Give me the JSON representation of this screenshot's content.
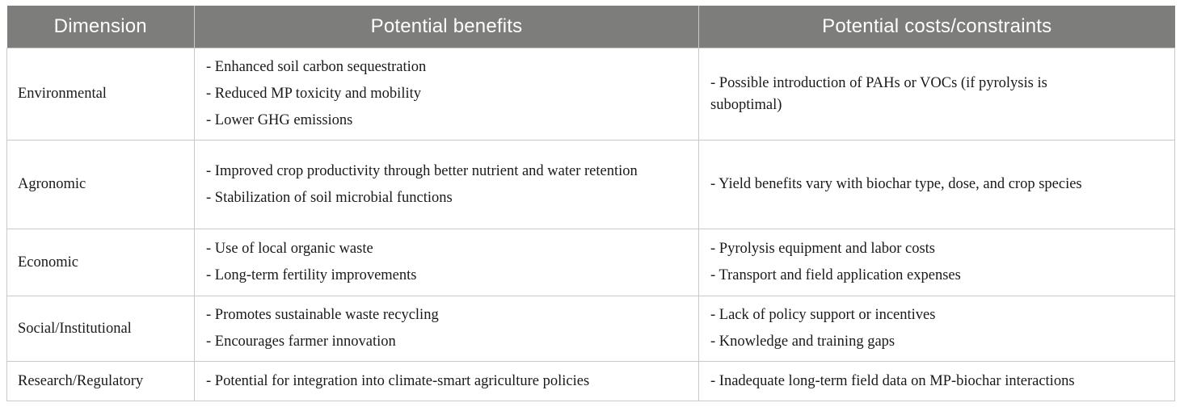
{
  "header": {
    "dimension": "Dimension",
    "benefits": "Potential benefits",
    "costs": "Potential costs/constraints"
  },
  "rows": [
    {
      "dimension": "Environmental",
      "benefits": [
        "- Enhanced soil carbon sequestration",
        "- Reduced MP toxicity and mobility",
        "- Lower GHG emissions"
      ],
      "costs": [
        "- Possible introduction of PAHs or VOCs (if pyrolysis is suboptimal)"
      ]
    },
    {
      "dimension": "Agronomic",
      "benefits": [
        "- Improved crop productivity through better nutrient and water retention",
        "- Stabilization of soil microbial functions"
      ],
      "costs": [
        "- Yield benefits vary with biochar type, dose, and crop species"
      ]
    },
    {
      "dimension": "Economic",
      "benefits": [
        "- Use of local organic waste",
        "- Long-term fertility improvements"
      ],
      "costs": [
        "- Pyrolysis equipment and labor costs",
        "- Transport and field application expenses"
      ]
    },
    {
      "dimension": "Social/Institutional",
      "benefits": [
        "- Promotes sustainable waste recycling",
        "- Encourages farmer innovation"
      ],
      "costs": [
        "- Lack of policy support or incentives",
        "- Knowledge and training gaps"
      ]
    },
    {
      "dimension": "Research/Regulatory",
      "benefits": [
        "- Potential for integration into climate-smart agriculture policies"
      ],
      "costs": [
        "- Inadequate long-term field data on MP-biochar interactions"
      ]
    }
  ]
}
